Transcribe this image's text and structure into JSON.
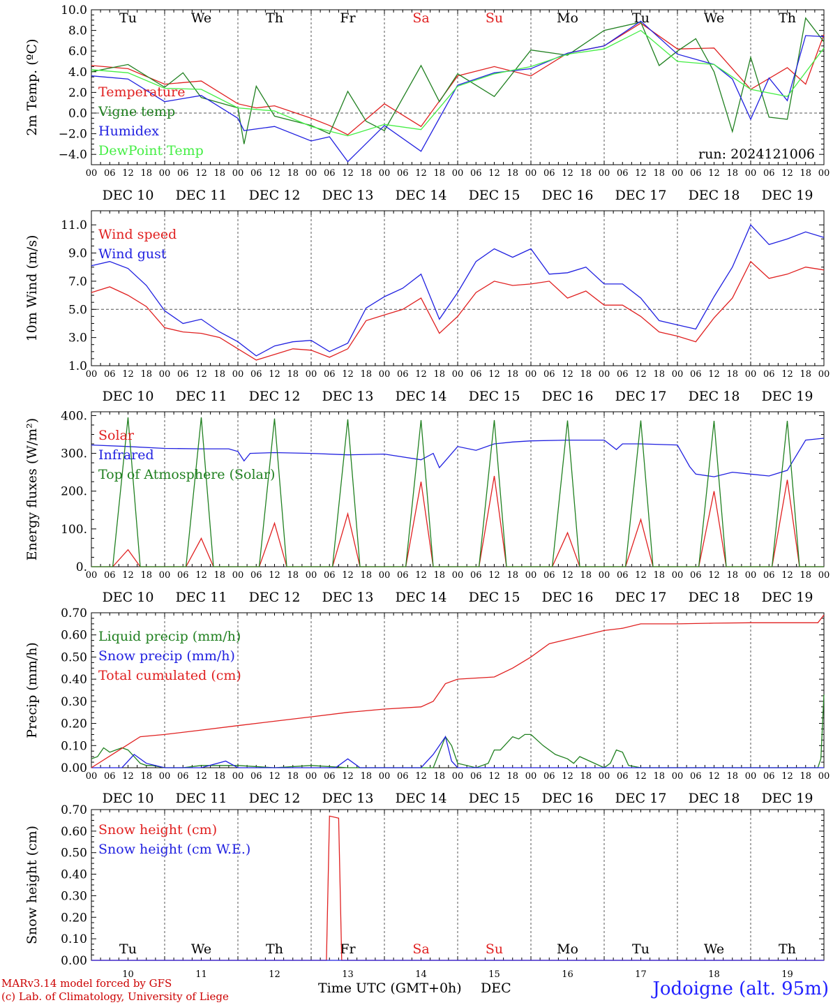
{
  "chart_data": [
    {
      "type": "line",
      "id": "temp",
      "ylabel": "2m Temp. (ºC)",
      "ylim": [
        -5,
        10
      ],
      "yticks": [
        -4,
        -2,
        0,
        2,
        4,
        6,
        8,
        10
      ],
      "ytick_labels": [
        "−4.0",
        "−2.0",
        "0.0",
        "2.0",
        "4.0",
        "6.0",
        "8.0",
        "10.0"
      ],
      "ref_line": 0,
      "annotation": "run: 2024121006",
      "day_names_top": true,
      "series": [
        {
          "name": "Temperature",
          "color": "#e02020",
          "x": [
            0,
            12,
            24,
            36,
            48,
            54,
            60,
            72,
            78,
            84,
            96,
            108,
            120,
            132,
            144,
            156,
            168,
            180,
            192,
            204,
            216,
            228,
            234,
            240
          ],
          "y": [
            4.6,
            4.3,
            2.8,
            3.1,
            0.9,
            0.5,
            0.7,
            -0.5,
            -1.2,
            -2.1,
            0.9,
            -1.3,
            3.6,
            4.5,
            3.6,
            5.8,
            6.5,
            8.7,
            6.2,
            6.3,
            2.3,
            4.4,
            2.8,
            7.6
          ]
        },
        {
          "name": "Vigne temp",
          "color": "#208020",
          "x": [
            0,
            12,
            24,
            30,
            36,
            48,
            50,
            54,
            60,
            72,
            78,
            84,
            90,
            96,
            108,
            114,
            120,
            132,
            144,
            156,
            168,
            180,
            186,
            192,
            198,
            204,
            210,
            216,
            222,
            228,
            234,
            240
          ],
          "y": [
            4.0,
            4.7,
            2.5,
            3.9,
            1.5,
            0.5,
            -3.0,
            2.6,
            -0.3,
            -1.2,
            -2.0,
            2.1,
            -0.8,
            -1.7,
            4.6,
            1.1,
            3.8,
            1.6,
            6.1,
            5.6,
            8.0,
            8.8,
            4.6,
            6.0,
            7.2,
            4.0,
            -1.8,
            5.4,
            -0.4,
            -0.6,
            9.2,
            6.9
          ]
        },
        {
          "name": "Humidex",
          "color": "#2020e0",
          "x": [
            0,
            12,
            24,
            36,
            48,
            50,
            60,
            72,
            78,
            84,
            96,
            108,
            120,
            132,
            144,
            156,
            168,
            180,
            192,
            204,
            210,
            216,
            222,
            228,
            234,
            240
          ],
          "y": [
            3.6,
            3.3,
            1.1,
            1.7,
            -0.5,
            -1.7,
            -1.3,
            -2.7,
            -2.3,
            -4.7,
            -1.2,
            -3.7,
            2.7,
            3.9,
            4.3,
            5.8,
            6.5,
            8.9,
            5.7,
            4.7,
            3.3,
            -0.6,
            3.4,
            1.2,
            7.5,
            7.4
          ]
        },
        {
          "name": "DewPoint Temp",
          "color": "#44ee44",
          "x": [
            0,
            12,
            24,
            36,
            48,
            60,
            72,
            84,
            96,
            108,
            120,
            132,
            144,
            156,
            168,
            180,
            192,
            204,
            216,
            228,
            240
          ],
          "y": [
            4.2,
            3.9,
            2.4,
            2.3,
            0.5,
            0.2,
            -1.3,
            -2.2,
            -1.1,
            -1.6,
            2.6,
            3.8,
            4.5,
            5.7,
            6.2,
            8.0,
            5.0,
            4.7,
            2.3,
            1.6,
            6.3
          ]
        }
      ]
    },
    {
      "type": "line",
      "id": "wind",
      "ylabel": "10m Wind (m/s)",
      "ylim": [
        1,
        12
      ],
      "yticks": [
        1,
        3,
        5,
        7,
        9,
        11
      ],
      "ytick_labels": [
        "1.0",
        "3.0",
        "5.0",
        "7.0",
        "9.0",
        "11.0"
      ],
      "ref_line": 5,
      "series": [
        {
          "name": "Wind speed",
          "color": "#e02020",
          "x": [
            0,
            6,
            12,
            18,
            24,
            30,
            36,
            42,
            48,
            54,
            60,
            66,
            72,
            78,
            84,
            90,
            96,
            102,
            108,
            114,
            120,
            126,
            132,
            138,
            144,
            150,
            156,
            162,
            168,
            174,
            180,
            186,
            192,
            198,
            204,
            210,
            216,
            222,
            228,
            234,
            240
          ],
          "y": [
            6.2,
            6.6,
            6.0,
            5.2,
            3.7,
            3.4,
            3.3,
            3.0,
            2.2,
            1.4,
            1.8,
            2.2,
            2.1,
            1.6,
            2.2,
            4.2,
            4.6,
            5.0,
            5.8,
            3.3,
            4.5,
            6.2,
            7.0,
            6.7,
            6.8,
            7.0,
            5.8,
            6.3,
            5.3,
            5.3,
            4.5,
            3.4,
            3.1,
            2.7,
            4.4,
            5.8,
            8.4,
            7.2,
            7.5,
            8.0,
            7.8
          ]
        },
        {
          "name": "Wind gust",
          "color": "#2020e0",
          "x": [
            0,
            6,
            12,
            18,
            24,
            30,
            36,
            42,
            48,
            54,
            60,
            66,
            72,
            78,
            84,
            90,
            96,
            102,
            108,
            114,
            120,
            126,
            132,
            138,
            144,
            150,
            156,
            162,
            168,
            174,
            180,
            186,
            192,
            198,
            204,
            210,
            216,
            222,
            228,
            234,
            240
          ],
          "y": [
            8.1,
            8.4,
            7.9,
            6.7,
            4.9,
            4.0,
            4.3,
            3.4,
            2.7,
            1.7,
            2.4,
            2.7,
            2.8,
            2.0,
            2.6,
            5.1,
            5.9,
            6.5,
            7.5,
            4.3,
            6.2,
            8.4,
            9.3,
            8.7,
            9.3,
            7.5,
            7.6,
            8.0,
            6.8,
            6.8,
            5.8,
            4.2,
            3.9,
            3.6,
            5.9,
            8.0,
            11.0,
            9.6,
            10.0,
            10.5,
            10.1
          ]
        }
      ]
    },
    {
      "type": "line",
      "id": "energy",
      "ylabel": "Energy fluxes (W/m²)",
      "ylim": [
        0,
        410
      ],
      "yticks": [
        0,
        100,
        200,
        300,
        400
      ],
      "ytick_labels": [
        "0.",
        "100.",
        "200.",
        "300.",
        "400."
      ],
      "series": [
        {
          "name": "Solar",
          "color": "#e02020",
          "x": [
            0,
            7,
            12,
            16,
            24,
            31,
            36,
            40,
            48,
            55,
            60,
            64,
            72,
            79,
            84,
            88,
            96,
            103,
            108,
            112,
            120,
            127,
            132,
            136,
            144,
            151,
            156,
            160,
            168,
            175,
            180,
            184,
            192,
            199,
            204,
            208,
            216,
            223,
            228,
            232,
            240
          ],
          "y": [
            0,
            0,
            45,
            0,
            0,
            0,
            75,
            0,
            0,
            0,
            115,
            0,
            0,
            0,
            140,
            0,
            0,
            0,
            225,
            0,
            0,
            0,
            240,
            0,
            0,
            0,
            90,
            0,
            0,
            0,
            125,
            0,
            0,
            0,
            200,
            0,
            0,
            0,
            230,
            0,
            0
          ]
        },
        {
          "name": "Infrared",
          "color": "#2020e0",
          "x": [
            0,
            12,
            24,
            36,
            45,
            48,
            50,
            52,
            60,
            72,
            84,
            96,
            108,
            112,
            114,
            120,
            126,
            132,
            138,
            144,
            156,
            168,
            172,
            174,
            180,
            192,
            196,
            198,
            204,
            210,
            216,
            222,
            228,
            234,
            240
          ],
          "y": [
            322,
            318,
            313,
            312,
            312,
            305,
            280,
            300,
            302,
            300,
            296,
            298,
            283,
            300,
            262,
            318,
            308,
            325,
            330,
            333,
            335,
            335,
            310,
            325,
            325,
            322,
            265,
            245,
            238,
            250,
            245,
            240,
            255,
            335,
            340
          ]
        },
        {
          "name": "Top of Atmosphere (Solar)",
          "color": "#208020",
          "x": [
            0,
            7,
            12,
            16,
            24,
            31,
            36,
            40,
            48,
            55,
            60,
            64,
            72,
            79,
            84,
            88,
            96,
            103,
            108,
            112,
            120,
            127,
            132,
            136,
            144,
            151,
            156,
            160,
            168,
            175,
            180,
            184,
            192,
            199,
            204,
            208,
            216,
            223,
            228,
            232,
            240
          ],
          "y": [
            0,
            0,
            395,
            0,
            0,
            0,
            395,
            0,
            0,
            0,
            392,
            0,
            0,
            0,
            390,
            0,
            0,
            0,
            388,
            0,
            0,
            0,
            388,
            0,
            0,
            0,
            387,
            0,
            0,
            0,
            387,
            0,
            0,
            0,
            386,
            0,
            0,
            0,
            386,
            0,
            0
          ]
        }
      ]
    },
    {
      "type": "line",
      "id": "precip",
      "ylabel": "Precip (mm/h)",
      "ylim": [
        0,
        0.7
      ],
      "yticks": [
        0,
        0.1,
        0.2,
        0.3,
        0.4,
        0.5,
        0.6,
        0.7
      ],
      "ytick_labels": [
        "0.00",
        "0.10",
        "0.20",
        "0.30",
        "0.40",
        "0.50",
        "0.60",
        "0.70"
      ],
      "series": [
        {
          "name": "Liquid precip (mm/h)",
          "color": "#208020",
          "x": [
            0,
            2,
            4,
            6,
            8,
            10,
            12,
            14,
            16,
            18,
            20,
            24,
            30,
            36,
            48,
            60,
            72,
            84,
            96,
            108,
            112,
            114,
            116,
            118,
            120,
            126,
            130,
            132,
            134,
            138,
            140,
            142,
            144,
            148,
            152,
            156,
            158,
            160,
            168,
            170,
            172,
            174,
            176,
            180,
            190,
            200,
            210,
            220,
            230,
            238,
            239,
            240
          ],
          "y": [
            0.04,
            0.05,
            0.09,
            0.07,
            0.08,
            0.09,
            0.08,
            0.05,
            0.02,
            0.01,
            0.01,
            0.0,
            0.0,
            0.01,
            0.01,
            0.0,
            0.01,
            0.0,
            0.0,
            0.0,
            0.0,
            0.07,
            0.14,
            0.1,
            0.02,
            0.0,
            0.02,
            0.08,
            0.08,
            0.14,
            0.13,
            0.15,
            0.15,
            0.1,
            0.06,
            0.04,
            0.02,
            0.05,
            0.0,
            0.02,
            0.08,
            0.07,
            0.01,
            0.0,
            0.0,
            0.0,
            0.0,
            0.0,
            0.0,
            0.0,
            0.04,
            0.33
          ]
        },
        {
          "name": "Snow precip (mm/h)",
          "color": "#2020e0",
          "x": [
            0,
            10,
            14,
            18,
            24,
            36,
            44,
            48,
            60,
            80,
            84,
            88,
            96,
            108,
            112,
            116,
            118,
            120,
            130,
            140,
            150,
            160,
            170,
            180,
            200,
            220,
            240
          ],
          "y": [
            0.0,
            0.0,
            0.06,
            0.02,
            0.0,
            0.0,
            0.03,
            0.0,
            0.0,
            0.0,
            0.04,
            0.0,
            0.0,
            0.0,
            0.06,
            0.14,
            0.03,
            0.0,
            0.0,
            0.0,
            0.0,
            0.0,
            0.0,
            0.0,
            0.0,
            0.0,
            0.0
          ]
        },
        {
          "name": "Total cumulated (cm)",
          "color": "#e02020",
          "x": [
            0,
            8,
            16,
            24,
            36,
            48,
            60,
            72,
            84,
            96,
            108,
            112,
            116,
            120,
            132,
            138,
            144,
            150,
            156,
            162,
            168,
            174,
            180,
            192,
            204,
            216,
            228,
            238,
            240
          ],
          "y": [
            0.0,
            0.07,
            0.14,
            0.15,
            0.17,
            0.19,
            0.21,
            0.23,
            0.25,
            0.265,
            0.275,
            0.3,
            0.38,
            0.4,
            0.41,
            0.45,
            0.5,
            0.56,
            0.58,
            0.6,
            0.62,
            0.63,
            0.65,
            0.65,
            0.653,
            0.655,
            0.655,
            0.655,
            0.69
          ]
        }
      ]
    },
    {
      "type": "line",
      "id": "snow",
      "ylabel": "Snow height (cm)",
      "ylim": [
        0,
        0.7
      ],
      "yticks": [
        0,
        0.1,
        0.2,
        0.3,
        0.4,
        0.5,
        0.6,
        0.7
      ],
      "ytick_labels": [
        "0.00",
        "0.10",
        "0.20",
        "0.30",
        "0.40",
        "0.50",
        "0.60",
        "0.70"
      ],
      "day_names_bottom": true,
      "series": [
        {
          "name": "Snow height (cm)",
          "color": "#e02020",
          "x": [
            0,
            77,
            78,
            81,
            82,
            240
          ],
          "y": [
            0,
            0,
            0.67,
            0.66,
            0,
            0
          ]
        },
        {
          "name": "Snow height (cm W.E.)",
          "color": "#2020e0",
          "x": [
            0,
            240
          ],
          "y": [
            0,
            0
          ]
        }
      ]
    }
  ],
  "x_axis": {
    "range_hours": [
      0,
      240
    ],
    "hour_tick_labels": [
      "00",
      "06",
      "12",
      "18"
    ],
    "date_labels": [
      "DEC 10",
      "DEC 11",
      "DEC 12",
      "DEC 13",
      "DEC 14",
      "DEC 15",
      "DEC 16",
      "DEC 17",
      "DEC 18",
      "DEC 19"
    ],
    "day_numbers": [
      "10",
      "11",
      "12",
      "13",
      "14",
      "15",
      "16",
      "17",
      "18",
      "19"
    ],
    "day_names": [
      "Tu",
      "We",
      "Th",
      "Fr",
      "Sa",
      "Su",
      "Mo",
      "Tu",
      "We",
      "Th"
    ],
    "weekend_color": "#e02020",
    "weekday_color": "#000000",
    "xlabel": "Time UTC (GMT+0h)",
    "unit_label": "DEC"
  },
  "footer": {
    "model": "MARv3.14 model forced by GFS",
    "credit": "(c) Lab. of Climatology, University of Liege",
    "station": "Jodoigne (alt. 95m)"
  }
}
